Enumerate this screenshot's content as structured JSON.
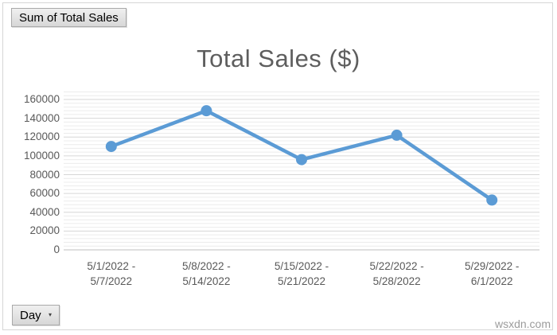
{
  "page": {
    "watermark": "wsxdn.com",
    "background": "#ffffff",
    "frame_border_color": "#d6d6d6"
  },
  "pivot_buttons": {
    "value_button_label": "Sum of Total Sales",
    "axis_button_label": "Day",
    "dropdown_icon": "▾"
  },
  "chart_data": {
    "type": "line",
    "title": "Total Sales ($)",
    "categories": [
      [
        "5/1/2022 -",
        "5/7/2022"
      ],
      [
        "5/8/2022 -",
        "5/14/2022"
      ],
      [
        "5/15/2022 -",
        "5/21/2022"
      ],
      [
        "5/22/2022 -",
        "5/28/2022"
      ],
      [
        "5/29/2022 -",
        "6/1/2022"
      ]
    ],
    "series": [
      {
        "name": "Sum of Total Sales",
        "values": [
          110000,
          148000,
          96000,
          122000,
          53000
        ]
      }
    ],
    "xlabel": "",
    "ylabel": "",
    "ylim": [
      0,
      160000
    ],
    "y_major_ticks": [
      0,
      20000,
      40000,
      60000,
      80000,
      100000,
      120000,
      140000,
      160000
    ],
    "y_minor_unit": 4000,
    "grid": "major-and-minor",
    "legend": "none",
    "line_color": "#5B9BD5",
    "marker_color": "#5B9BD5",
    "title_color": "#5e5e5e",
    "tick_label_color": "#595959",
    "major_grid_color": "#d6d6d6",
    "minor_grid_color": "#ececec",
    "axis_line_color": "#bfbfbf"
  }
}
